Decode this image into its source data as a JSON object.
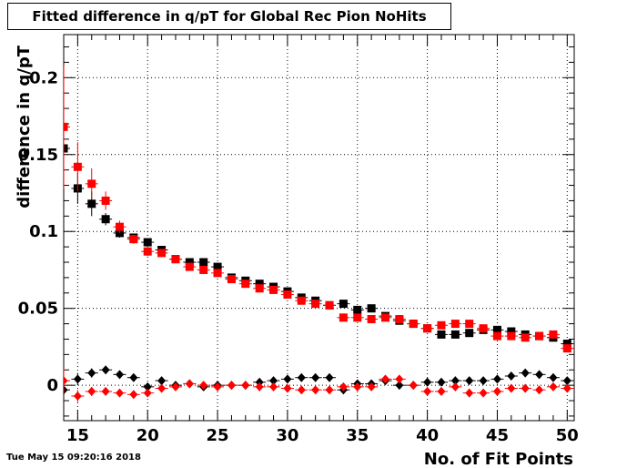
{
  "title": "Fitted difference in q/pT for Global Rec Pion NoHits",
  "timestamp": "Tue May 15 09:20:16 2018",
  "chart_data": {
    "type": "scatter",
    "title": "Fitted difference in q/pT for Global Rec Pion NoHits",
    "xlabel": "No. of Fit Points",
    "ylabel": "difference in q/pT",
    "xlim": [
      14,
      50.5
    ],
    "ylim": [
      -0.023,
      0.228
    ],
    "x_ticks": [
      15,
      20,
      25,
      30,
      35,
      40,
      45,
      50
    ],
    "x_tick_labels": [
      "15",
      "20",
      "25",
      "30",
      "35",
      "40",
      "45",
      "50"
    ],
    "y_ticks": [
      0,
      0.05,
      0.1,
      0.15,
      0.2
    ],
    "y_tick_labels": [
      "0",
      "0.05",
      "0.1",
      "0.15",
      "0.2"
    ],
    "grid": true,
    "series": [
      {
        "marker": "square",
        "color": "#000000",
        "x": [
          14,
          15,
          16,
          17,
          18,
          19,
          20,
          21,
          22,
          23,
          24,
          25,
          26,
          27,
          28,
          29,
          30,
          31,
          32,
          33,
          34,
          35,
          36,
          37,
          38,
          39,
          40,
          41,
          42,
          43,
          44,
          45,
          46,
          47,
          48,
          49,
          50
        ],
        "y": [
          0.154,
          0.128,
          0.118,
          0.108,
          0.099,
          0.096,
          0.093,
          0.088,
          0.082,
          0.08,
          0.08,
          0.077,
          0.07,
          0.068,
          0.066,
          0.064,
          0.061,
          0.057,
          0.055,
          0.052,
          0.053,
          0.049,
          0.05,
          0.045,
          0.042,
          0.04,
          0.037,
          0.033,
          0.033,
          0.034,
          0.036,
          0.036,
          0.035,
          0.033,
          0.032,
          0.031,
          0.027
        ],
        "yerr": [
          0.012,
          0.01,
          0.008,
          0.004,
          0.003,
          0.002,
          0.002,
          0.002,
          0.002,
          0.002,
          0.002,
          0.002,
          0.002,
          0.002,
          0.002,
          0.002,
          0.002,
          0.002,
          0.002,
          0.002,
          0.002,
          0.002,
          0.002,
          0.002,
          0.002,
          0.002,
          0.002,
          0.002,
          0.002,
          0.002,
          0.002,
          0.002,
          0.002,
          0.002,
          0.002,
          0.002,
          0.002
        ]
      },
      {
        "marker": "square",
        "color": "#ff0000",
        "x": [
          14,
          15,
          16,
          17,
          18,
          19,
          20,
          21,
          22,
          23,
          24,
          25,
          26,
          27,
          28,
          29,
          30,
          31,
          32,
          33,
          34,
          35,
          36,
          37,
          38,
          39,
          40,
          41,
          42,
          43,
          44,
          45,
          46,
          47,
          48,
          49,
          50
        ],
        "y": [
          0.168,
          0.142,
          0.131,
          0.12,
          0.103,
          0.095,
          0.087,
          0.086,
          0.082,
          0.077,
          0.075,
          0.073,
          0.069,
          0.066,
          0.063,
          0.062,
          0.059,
          0.055,
          0.053,
          0.052,
          0.044,
          0.044,
          0.043,
          0.044,
          0.043,
          0.04,
          0.037,
          0.039,
          0.04,
          0.04,
          0.037,
          0.032,
          0.032,
          0.031,
          0.032,
          0.033,
          0.024
        ],
        "yerr": [
          0.04,
          0.016,
          0.01,
          0.006,
          0.004,
          0.003,
          0.003,
          0.002,
          0.002,
          0.002,
          0.002,
          0.002,
          0.002,
          0.002,
          0.002,
          0.002,
          0.002,
          0.002,
          0.002,
          0.002,
          0.002,
          0.002,
          0.002,
          0.002,
          0.002,
          0.002,
          0.002,
          0.002,
          0.002,
          0.002,
          0.002,
          0.002,
          0.002,
          0.002,
          0.002,
          0.002,
          0.002
        ]
      },
      {
        "marker": "diamond",
        "color": "#000000",
        "x": [
          14,
          15,
          16,
          17,
          18,
          19,
          20,
          21,
          22,
          23,
          24,
          25,
          26,
          27,
          28,
          29,
          30,
          31,
          32,
          33,
          34,
          35,
          36,
          37,
          38,
          39,
          40,
          41,
          42,
          43,
          44,
          45,
          46,
          47,
          48,
          49,
          50
        ],
        "y": [
          -0.003,
          0.004,
          0.008,
          0.01,
          0.007,
          0.005,
          -0.001,
          0.003,
          0.0,
          0.001,
          -0.001,
          0.0,
          0.0,
          0.0,
          0.002,
          0.003,
          0.004,
          0.005,
          0.005,
          0.005,
          -0.003,
          0.001,
          0.001,
          0.003,
          0.0,
          0.0,
          0.002,
          0.002,
          0.003,
          0.003,
          0.003,
          0.004,
          0.006,
          0.008,
          0.007,
          0.005,
          0.003
        ],
        "yerr": [
          0.008,
          0.004,
          0.003,
          0.002,
          0.002,
          0.002,
          0.002,
          0.002,
          0.002,
          0.002,
          0.002,
          0.002,
          0.002,
          0.002,
          0.002,
          0.002,
          0.002,
          0.002,
          0.002,
          0.002,
          0.002,
          0.002,
          0.002,
          0.002,
          0.002,
          0.002,
          0.002,
          0.002,
          0.002,
          0.002,
          0.002,
          0.002,
          0.002,
          0.002,
          0.002,
          0.002,
          0.002
        ]
      },
      {
        "marker": "diamond",
        "color": "#ff0000",
        "x": [
          14,
          15,
          16,
          17,
          18,
          19,
          20,
          21,
          22,
          23,
          24,
          25,
          26,
          27,
          28,
          29,
          30,
          31,
          32,
          33,
          34,
          35,
          36,
          37,
          38,
          39,
          40,
          41,
          42,
          43,
          44,
          45,
          46,
          47,
          48,
          49,
          50
        ],
        "y": [
          0.003,
          -0.007,
          -0.004,
          -0.004,
          -0.005,
          -0.006,
          -0.005,
          -0.002,
          -0.001,
          0.001,
          0.0,
          -0.001,
          0.0,
          0.0,
          -0.001,
          -0.001,
          -0.002,
          -0.003,
          -0.003,
          -0.003,
          -0.001,
          -0.001,
          -0.001,
          0.004,
          0.004,
          0.0,
          -0.004,
          -0.004,
          -0.001,
          -0.005,
          -0.005,
          -0.004,
          -0.002,
          -0.002,
          -0.003,
          -0.001,
          -0.002
        ],
        "yerr": [
          0.008,
          0.004,
          0.003,
          0.002,
          0.002,
          0.002,
          0.002,
          0.002,
          0.002,
          0.002,
          0.002,
          0.002,
          0.002,
          0.002,
          0.002,
          0.002,
          0.002,
          0.002,
          0.002,
          0.002,
          0.002,
          0.002,
          0.002,
          0.002,
          0.002,
          0.002,
          0.002,
          0.002,
          0.002,
          0.002,
          0.002,
          0.002,
          0.002,
          0.002,
          0.002,
          0.002,
          0.002
        ]
      }
    ]
  }
}
